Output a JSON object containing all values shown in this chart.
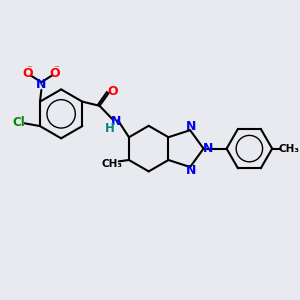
{
  "background_color": "#e8eaf0",
  "bond_color": "#000000",
  "N_color": "#0000ee",
  "O_color": "#ff0000",
  "Cl_color": "#008800",
  "H_color": "#008888",
  "figsize": [
    3.0,
    3.0
  ],
  "dpi": 100,
  "xlim": [
    0,
    10
  ],
  "ylim": [
    0,
    10
  ]
}
